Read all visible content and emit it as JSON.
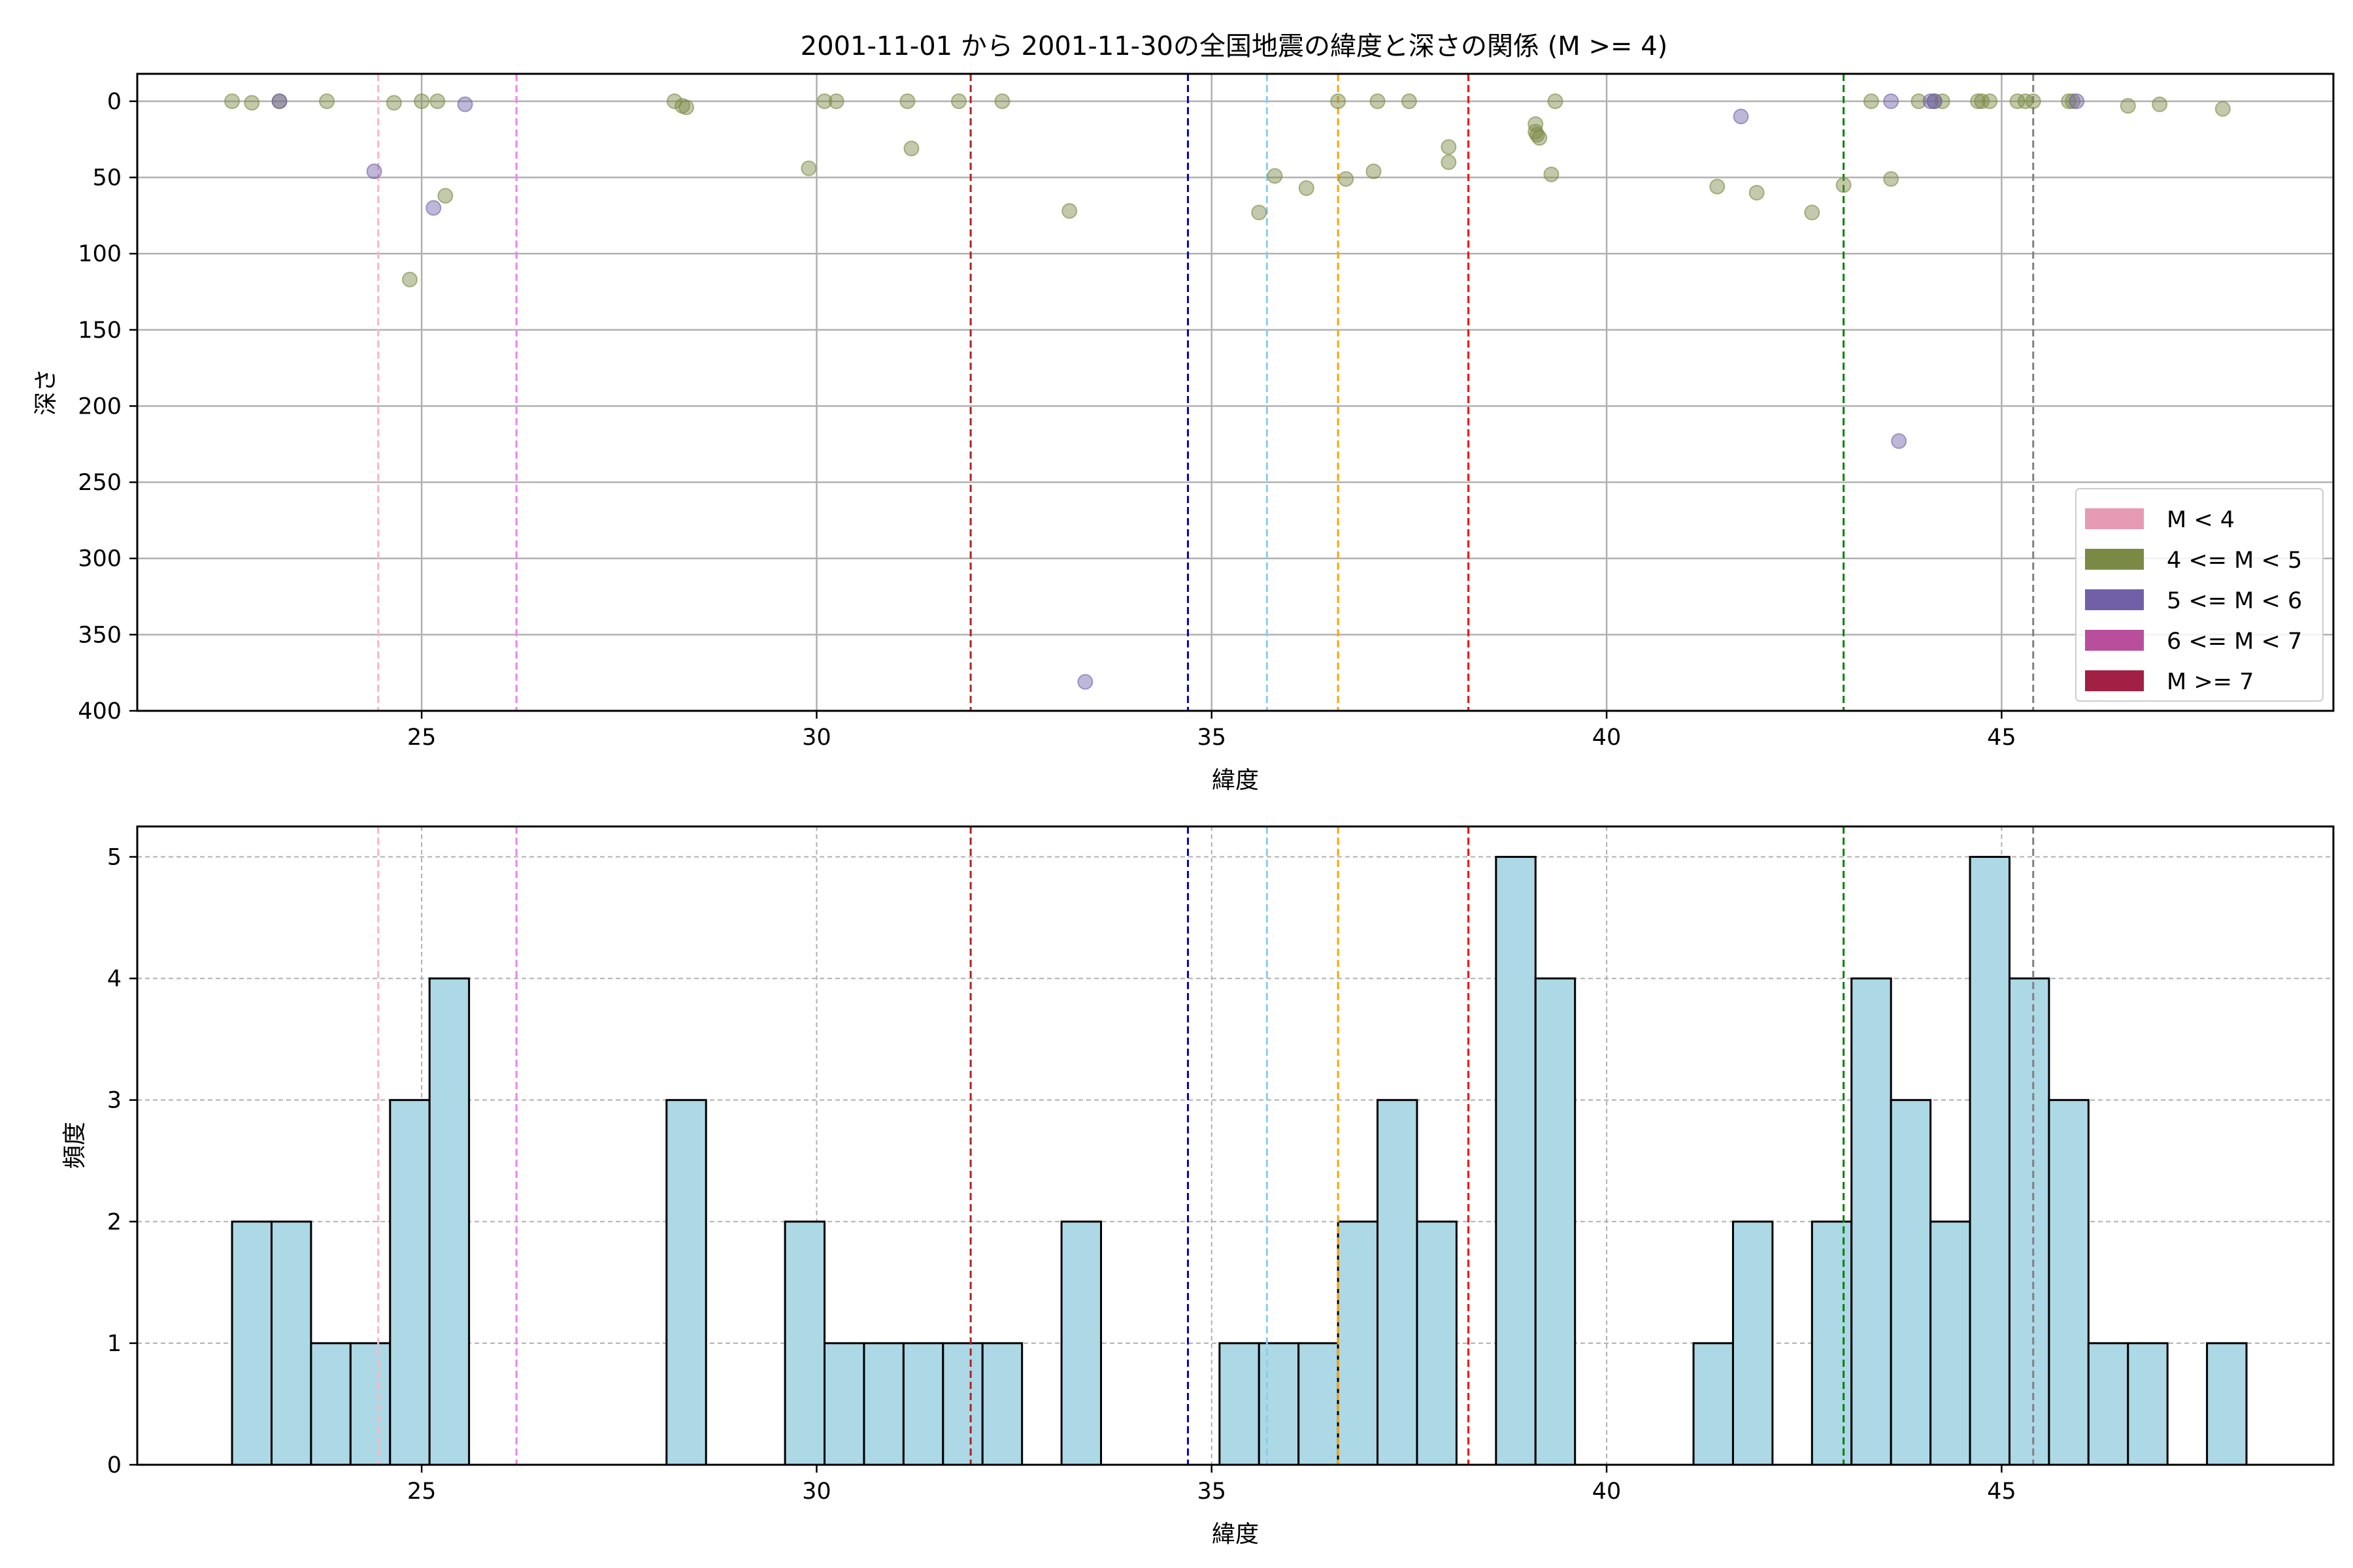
{
  "chart_data": [
    {
      "type": "scatter",
      "title": "2001-11-01 から 2001-11-30の全国地震の緯度と深さの関係 (M >= 4)",
      "xlabel": "緯度",
      "ylabel": "深さ",
      "xlim": [
        21.4,
        49.2
      ],
      "ylim": [
        400,
        -18
      ],
      "y_inverted": true,
      "xticks": [
        25,
        30,
        35,
        40,
        45
      ],
      "yticks": [
        0,
        50,
        100,
        150,
        200,
        250,
        300,
        350,
        400
      ],
      "grid": true,
      "legend_position": "lower-right",
      "legend": [
        {
          "label": "M < 4",
          "color": "#e79ab4"
        },
        {
          "label": "4 <= M < 5",
          "color": "#7a8a45"
        },
        {
          "label": "5 <= M < 6",
          "color": "#7160a8"
        },
        {
          "label": "6 <= M < 7",
          "color": "#b94f9c"
        },
        {
          "label": "M >= 7",
          "color": "#a32045"
        }
      ],
      "series": [
        {
          "name": "4 <= M < 5",
          "color": "#7a8a45",
          "points": [
            [
              22.6,
              0
            ],
            [
              22.85,
              1
            ],
            [
              23.2,
              0
            ],
            [
              23.8,
              0
            ],
            [
              24.65,
              1
            ],
            [
              25.0,
              0
            ],
            [
              25.2,
              0
            ],
            [
              24.85,
              117
            ],
            [
              25.3,
              62
            ],
            [
              28.2,
              0
            ],
            [
              28.3,
              3
            ],
            [
              28.35,
              4
            ],
            [
              29.9,
              44
            ],
            [
              30.1,
              0
            ],
            [
              30.25,
              0
            ],
            [
              31.15,
              0
            ],
            [
              31.2,
              31
            ],
            [
              31.8,
              0
            ],
            [
              32.35,
              0
            ],
            [
              33.2,
              72
            ],
            [
              35.6,
              73
            ],
            [
              35.8,
              49
            ],
            [
              36.2,
              57
            ],
            [
              36.6,
              0
            ],
            [
              36.7,
              51
            ],
            [
              37.05,
              46
            ],
            [
              37.1,
              0
            ],
            [
              37.5,
              0
            ],
            [
              38.0,
              30
            ],
            [
              38.0,
              40
            ],
            [
              39.1,
              15
            ],
            [
              39.1,
              20
            ],
            [
              39.12,
              22
            ],
            [
              39.15,
              24
            ],
            [
              39.3,
              48
            ],
            [
              39.35,
              0
            ],
            [
              41.4,
              56
            ],
            [
              41.9,
              60
            ],
            [
              42.6,
              73
            ],
            [
              43.0,
              55
            ],
            [
              43.35,
              0
            ],
            [
              43.6,
              51
            ],
            [
              43.95,
              0
            ],
            [
              44.15,
              0
            ],
            [
              44.25,
              0
            ],
            [
              44.7,
              0
            ],
            [
              44.75,
              0
            ],
            [
              44.85,
              0
            ],
            [
              45.2,
              0
            ],
            [
              45.3,
              0
            ],
            [
              45.4,
              0
            ],
            [
              45.85,
              0
            ],
            [
              45.9,
              0
            ],
            [
              46.6,
              3
            ],
            [
              47.0,
              2
            ],
            [
              47.8,
              5
            ]
          ]
        },
        {
          "name": "5 <= M < 6",
          "color": "#7160a8",
          "points": [
            [
              23.2,
              0
            ],
            [
              24.4,
              46
            ],
            [
              25.15,
              70
            ],
            [
              25.55,
              2
            ],
            [
              33.4,
              381
            ],
            [
              41.7,
              10
            ],
            [
              43.6,
              0
            ],
            [
              43.7,
              223
            ],
            [
              44.1,
              0
            ],
            [
              44.15,
              0
            ],
            [
              45.95,
              0
            ]
          ]
        }
      ],
      "vlines": [
        {
          "x": 24.45,
          "color": "#ffb6c1"
        },
        {
          "x": 26.2,
          "color": "#ee82ee"
        },
        {
          "x": 31.95,
          "color": "#b22222"
        },
        {
          "x": 34.7,
          "color": "#0000cd"
        },
        {
          "x": 35.7,
          "color": "#87ceeb"
        },
        {
          "x": 36.6,
          "color": "#ffa500"
        },
        {
          "x": 38.25,
          "color": "#ff0000"
        },
        {
          "x": 43.0,
          "color": "#008000"
        },
        {
          "x": 45.4,
          "color": "#808080"
        }
      ]
    },
    {
      "type": "bar",
      "subtype": "histogram",
      "xlabel": "緯度",
      "ylabel": "頻度",
      "xlim": [
        21.4,
        49.2
      ],
      "ylim": [
        0,
        5.25
      ],
      "xticks": [
        25,
        30,
        35,
        40,
        45
      ],
      "yticks": [
        0,
        1,
        2,
        3,
        4,
        5
      ],
      "grid": true,
      "bar_color": "#add8e6",
      "bin_width": 0.5,
      "bin_starts": [
        22.6,
        23.1,
        23.6,
        24.1,
        24.6,
        25.1,
        28.1,
        29.6,
        30.1,
        30.6,
        31.1,
        31.6,
        32.1,
        33.1,
        35.1,
        35.6,
        36.1,
        36.6,
        37.1,
        37.6,
        38.6,
        39.1,
        41.1,
        41.6,
        42.6,
        43.1,
        43.6,
        44.1,
        44.6,
        45.1,
        45.6,
        46.1,
        46.6,
        47.6
      ],
      "values": [
        2,
        2,
        1,
        1,
        3,
        4,
        3,
        2,
        1,
        1,
        1,
        1,
        1,
        2,
        1,
        1,
        1,
        2,
        3,
        2,
        5,
        4,
        1,
        2,
        2,
        4,
        3,
        2,
        5,
        4,
        3,
        1,
        1,
        1
      ],
      "vlines": [
        {
          "x": 24.45,
          "color": "#ffb6c1"
        },
        {
          "x": 26.2,
          "color": "#ee82ee"
        },
        {
          "x": 31.95,
          "color": "#b22222"
        },
        {
          "x": 34.7,
          "color": "#0000cd"
        },
        {
          "x": 35.7,
          "color": "#87ceeb"
        },
        {
          "x": 36.6,
          "color": "#ffa500"
        },
        {
          "x": 38.25,
          "color": "#ff0000"
        },
        {
          "x": 43.0,
          "color": "#008000"
        },
        {
          "x": 45.4,
          "color": "#808080"
        }
      ]
    }
  ]
}
